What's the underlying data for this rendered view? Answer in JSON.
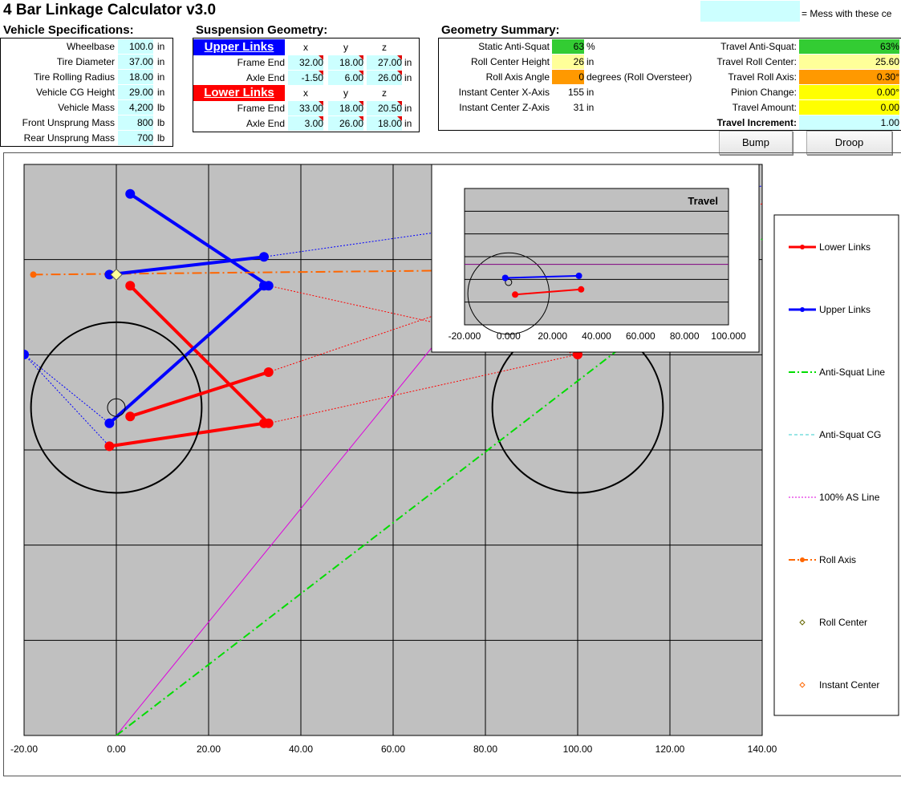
{
  "app": {
    "title": "4 Bar Linkage Calculator v3.0",
    "legend_note": "= Mess with these ce",
    "input_color": "#ccffff"
  },
  "vehicle": {
    "heading": "Vehicle Specifications:",
    "rows": [
      {
        "label": "Wheelbase",
        "value": "100.0",
        "unit": "in"
      },
      {
        "label": "Tire Diameter",
        "value": "37.00",
        "unit": "in"
      },
      {
        "label": "Tire Rolling Radius",
        "value": "18.00",
        "unit": "in"
      },
      {
        "label": "Vehicle CG Height",
        "value": "29.00",
        "unit": "in"
      },
      {
        "label": "Vehicle Mass",
        "value": "4,200",
        "unit": "lb"
      },
      {
        "label": "Front Unsprung Mass",
        "value": "800",
        "unit": "lb"
      },
      {
        "label": "Rear Unsprung Mass",
        "value": "700",
        "unit": "lb"
      }
    ]
  },
  "suspension": {
    "heading": "Suspension Geometry:",
    "cols": [
      "x",
      "y",
      "z"
    ],
    "upper_label": "Upper Links",
    "lower_label": "Lower Links",
    "upper": [
      {
        "label": "Frame End",
        "x": "32.00",
        "y": "18.00",
        "z": "27.00",
        "unit": "in"
      },
      {
        "label": "Axle End",
        "x": "-1.50",
        "y": "6.00",
        "z": "26.00",
        "unit": "in"
      }
    ],
    "lower": [
      {
        "label": "Frame End",
        "x": "33.00",
        "y": "18.00",
        "z": "20.50",
        "unit": "in"
      },
      {
        "label": "Axle End",
        "x": "3.00",
        "y": "26.00",
        "z": "18.00",
        "unit": "in"
      }
    ]
  },
  "summary": {
    "heading": "Geometry Summary:",
    "left": [
      {
        "label": "Static Anti-Squat",
        "value": "63",
        "unit": "%",
        "color": "#33cc33"
      },
      {
        "label": "Roll Center Height",
        "value": "26",
        "unit": "in",
        "color": "#ffff99"
      },
      {
        "label": "Roll Axis Angle",
        "value": "0",
        "unit": "degrees (Roll Oversteer)",
        "color": "#ff9900"
      },
      {
        "label": "Instant Center X-Axis",
        "value": "155",
        "unit": "in",
        "color": ""
      },
      {
        "label": "Instant Center Z-Axis",
        "value": "31",
        "unit": "in",
        "color": ""
      }
    ],
    "right": [
      {
        "label": "Travel Anti-Squat:",
        "value": "63%",
        "color": "#33cc33"
      },
      {
        "label": "Travel Roll Center:",
        "value": "25.60",
        "color": "#ffff99"
      },
      {
        "label": "Travel Roll Axis:",
        "value": "0.30°",
        "color": "#ff9900"
      },
      {
        "label": "Pinion Change:",
        "value": "0.00°",
        "color": "#ffff00"
      },
      {
        "label": "Travel Amount:",
        "value": "0.00",
        "color": "#ffff00"
      }
    ],
    "increment_label": "Travel Increment:",
    "increment_value": "1.00"
  },
  "buttons": {
    "bump": "Bump",
    "droop": "Droop"
  },
  "chart_data": [
    {
      "type": "scatter",
      "name": "main-plot",
      "xlim": [
        -20,
        140
      ],
      "x_ticks": [
        "-20.00",
        "0.00",
        "20.00",
        "40.00",
        "60.00",
        "80.00",
        "100.00",
        "120.00",
        "140.00"
      ],
      "grid": true,
      "legend_placement": "right",
      "legend": [
        "Lower Links",
        "Upper Links",
        "Anti-Squat Line",
        "Anti-Squat CG",
        "100% AS Line",
        "Roll Axis",
        "Roll Center",
        "Instant Center"
      ],
      "colors": {
        "lower": "#ff0000",
        "upper": "#0000ff",
        "anti_squat": "#00dd00",
        "as_cg": "#33cccc",
        "as100": "#dd00dd",
        "roll_axis": "#ff6600",
        "roll_center": "#666600",
        "instant_center": "#ff6600"
      },
      "top_view": {
        "upper_links": [
          [
            [
              3,
              26
            ],
            [
              33,
              18
            ]
          ],
          [
            [
              -1.5,
              6
            ],
            [
              32,
              18
            ]
          ]
        ],
        "lower_links": [
          [
            [
              3,
              18
            ],
            [
              33,
              6
            ]
          ],
          [
            [
              -1.5,
              4
            ],
            [
              32,
              6
            ]
          ]
        ],
        "upper_ext": [
          [
            [
              -20,
              12
            ],
            [
              -1.5,
              6
            ]
          ],
          [
            [
              -20,
              12
            ],
            [
              -1.5,
              4
            ]
          ]
        ],
        "lower_ext": [
          [
            [
              33,
              18
            ],
            [
              100,
              12
            ]
          ],
          [
            [
              33,
              6
            ],
            [
              100,
              12
            ]
          ]
        ]
      },
      "side_view": {
        "upper_link": [
          [
            -1.5,
            26
          ],
          [
            32,
            27
          ]
        ],
        "lower_link": [
          [
            3,
            18
          ],
          [
            33,
            20.5
          ]
        ],
        "roll_center": [
          0,
          26
        ],
        "rear_wheel_center": [
          0,
          18.5
        ],
        "front_wheel_center": [
          100,
          18.5
        ],
        "tire_diameter": 37,
        "upper_ext": [
          [
            32,
            27
          ],
          [
            140,
            31
          ]
        ],
        "lower_ext": [
          [
            33,
            20.5
          ],
          [
            140,
            30
          ]
        ],
        "roll_axis": [
          [
            -18,
            26
          ],
          [
            100,
            26.3
          ]
        ],
        "anti_squat_line": [
          [
            0,
            0
          ],
          [
            140,
            28
          ]
        ],
        "as_cg_line": [
          [
            -20,
            32.5
          ],
          [
            140,
            32.5
          ]
        ],
        "as100_line": [
          [
            0,
            0
          ],
          [
            100,
            32
          ]
        ]
      }
    },
    {
      "type": "scatter",
      "name": "travel-inset",
      "title": "Travel",
      "xlim": [
        -20,
        100
      ],
      "x_ticks": [
        "-20.000",
        "0.000",
        "20.000",
        "40.000",
        "60.000",
        "80.000",
        "100.000"
      ],
      "grid": true,
      "upper_link": [
        [
          -1.5,
          26
        ],
        [
          32,
          27
        ]
      ],
      "lower_link": [
        [
          3,
          18
        ],
        [
          33,
          20.5
        ]
      ],
      "roll_center": [
        0,
        18.5
      ],
      "cg_line_y": 32.5,
      "tire_diameter": 37
    }
  ]
}
